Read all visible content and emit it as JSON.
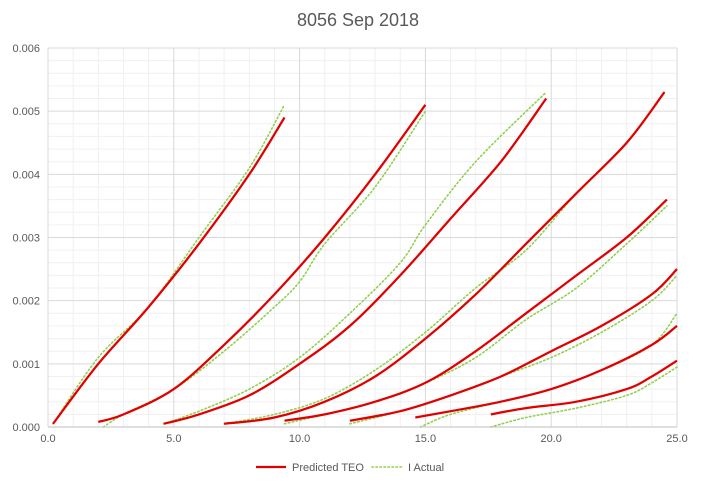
{
  "chart_data": {
    "type": "line",
    "title": "8056 Sep 2018",
    "xlabel": "",
    "ylabel": "",
    "xlim": [
      0,
      25
    ],
    "ylim": [
      0,
      0.006
    ],
    "x_ticks": [
      "0.0",
      "5.0",
      "10.0",
      "15.0",
      "20.0",
      "25.0"
    ],
    "y_ticks": [
      "0.000",
      "0.001",
      "0.002",
      "0.003",
      "0.004",
      "0.005",
      "0.006"
    ],
    "grid": "major and minor",
    "legend_position": "bottom",
    "legend": [
      "Predicted TEO",
      "I Actual"
    ],
    "colors": {
      "predicted": "#e00000",
      "actual": "#92d050"
    },
    "series": [
      {
        "group": "Predicted TEO",
        "style": "solid",
        "points": [
          [
            0.2,
            5e-05
          ],
          [
            2,
            0.001
          ],
          [
            4,
            0.0019
          ],
          [
            6,
            0.0029
          ],
          [
            8,
            0.004
          ],
          [
            9.4,
            0.0049
          ]
        ]
      },
      {
        "group": "I Actual",
        "style": "dotted",
        "points": [
          [
            0.2,
            5e-05
          ],
          [
            2,
            0.0011
          ],
          [
            4,
            0.0019
          ],
          [
            6,
            0.003
          ],
          [
            8,
            0.0041
          ],
          [
            9.4,
            0.0051
          ]
        ]
      },
      {
        "group": "Predicted TEO",
        "style": "solid",
        "points": [
          [
            2,
            8e-05
          ],
          [
            3,
            0.0002
          ],
          [
            5,
            0.0006
          ],
          [
            7,
            0.0013
          ],
          [
            9,
            0.0021
          ],
          [
            11,
            0.003
          ],
          [
            13,
            0.004
          ],
          [
            15,
            0.0051
          ]
        ]
      },
      {
        "group": "I Actual",
        "style": "dotted",
        "points": [
          [
            2.2,
            0
          ],
          [
            3,
            0.0002
          ],
          [
            5,
            0.0006
          ],
          [
            7,
            0.0012
          ],
          [
            9,
            0.0019
          ],
          [
            10,
            0.0023
          ],
          [
            11,
            0.0029
          ],
          [
            13,
            0.0038
          ],
          [
            15,
            0.005
          ]
        ]
      },
      {
        "group": "Predicted TEO",
        "style": "solid",
        "points": [
          [
            4.6,
            5e-05
          ],
          [
            6,
            0.0002
          ],
          [
            8,
            0.0005
          ],
          [
            10,
            0.001
          ],
          [
            12,
            0.0016
          ],
          [
            14,
            0.0024
          ],
          [
            16,
            0.0033
          ],
          [
            18,
            0.0042
          ],
          [
            19.8,
            0.0052
          ]
        ]
      },
      {
        "group": "I Actual",
        "style": "dotted",
        "points": [
          [
            4.6,
            5e-05
          ],
          [
            6,
            0.00025
          ],
          [
            8,
            0.0006
          ],
          [
            10,
            0.0011
          ],
          [
            12,
            0.0018
          ],
          [
            14,
            0.0026
          ],
          [
            15,
            0.0032
          ],
          [
            17,
            0.0042
          ],
          [
            19.8,
            0.0053
          ]
        ]
      },
      {
        "group": "Predicted TEO",
        "style": "solid",
        "points": [
          [
            7,
            5e-05
          ],
          [
            9,
            0.00015
          ],
          [
            11,
            0.0004
          ],
          [
            13,
            0.0008
          ],
          [
            15,
            0.0014
          ],
          [
            17,
            0.0021
          ],
          [
            19,
            0.0029
          ],
          [
            21,
            0.0037
          ],
          [
            23,
            0.0045
          ],
          [
            24.5,
            0.0053
          ]
        ]
      },
      {
        "group": "I Actual",
        "style": "dotted",
        "points": [
          [
            7,
            5e-05
          ],
          [
            9,
            0.0002
          ],
          [
            11,
            0.00045
          ],
          [
            13,
            0.0009
          ],
          [
            15,
            0.0015
          ],
          [
            17,
            0.0022
          ],
          [
            19,
            0.0028
          ],
          [
            21,
            0.0037
          ],
          [
            23,
            0.0045
          ],
          [
            24.5,
            0.0053
          ]
        ]
      },
      {
        "group": "Predicted TEO",
        "style": "solid",
        "points": [
          [
            9.4,
            0.0001
          ],
          [
            11,
            0.0002
          ],
          [
            13,
            0.0004
          ],
          [
            15,
            0.0007
          ],
          [
            17,
            0.0012
          ],
          [
            19,
            0.0018
          ],
          [
            21,
            0.0024
          ],
          [
            23,
            0.003
          ],
          [
            24.6,
            0.0036
          ]
        ]
      },
      {
        "group": "I Actual",
        "style": "dotted",
        "points": [
          [
            9.4,
            5e-05
          ],
          [
            11,
            0.0002
          ],
          [
            13,
            0.0004
          ],
          [
            15,
            0.0007
          ],
          [
            17,
            0.0011
          ],
          [
            19,
            0.0017
          ],
          [
            21,
            0.0022
          ],
          [
            23,
            0.0029
          ],
          [
            24.6,
            0.0035
          ]
        ]
      },
      {
        "group": "Predicted TEO",
        "style": "solid",
        "points": [
          [
            12,
            0.0001
          ],
          [
            14,
            0.00025
          ],
          [
            16,
            0.0005
          ],
          [
            18,
            0.0008
          ],
          [
            20,
            0.0012
          ],
          [
            22,
            0.0016
          ],
          [
            24,
            0.0021
          ],
          [
            25,
            0.0025
          ]
        ]
      },
      {
        "group": "I Actual",
        "style": "dotted",
        "points": [
          [
            12,
            5e-05
          ],
          [
            14,
            0.00025
          ],
          [
            16,
            0.0005
          ],
          [
            18,
            0.0008
          ],
          [
            20,
            0.0011
          ],
          [
            22,
            0.0015
          ],
          [
            24,
            0.002
          ],
          [
            25,
            0.0024
          ]
        ]
      },
      {
        "group": "Predicted TEO",
        "style": "solid",
        "points": [
          [
            14.6,
            0.00015
          ],
          [
            16,
            0.00025
          ],
          [
            18,
            0.0004
          ],
          [
            20,
            0.0006
          ],
          [
            22,
            0.0009
          ],
          [
            24,
            0.0013
          ],
          [
            25,
            0.0016
          ]
        ]
      },
      {
        "group": "I Actual",
        "style": "dotted",
        "points": [
          [
            14.8,
            0
          ],
          [
            16,
            0.0002
          ],
          [
            18,
            0.0004
          ],
          [
            20,
            0.0006
          ],
          [
            22,
            0.0009
          ],
          [
            24,
            0.0013
          ],
          [
            25,
            0.0018
          ]
        ]
      },
      {
        "group": "Predicted TEO",
        "style": "solid",
        "points": [
          [
            17.6,
            0.0002
          ],
          [
            19,
            0.0003
          ],
          [
            21,
            0.0004
          ],
          [
            23,
            0.0006
          ],
          [
            24,
            0.0008
          ],
          [
            25,
            0.00105
          ]
        ]
      },
      {
        "group": "I Actual",
        "style": "dotted",
        "points": [
          [
            17.6,
            0
          ],
          [
            19,
            0.00015
          ],
          [
            21,
            0.0003
          ],
          [
            23,
            0.0005
          ],
          [
            24,
            0.0007
          ],
          [
            25,
            0.00095
          ]
        ]
      }
    ]
  }
}
